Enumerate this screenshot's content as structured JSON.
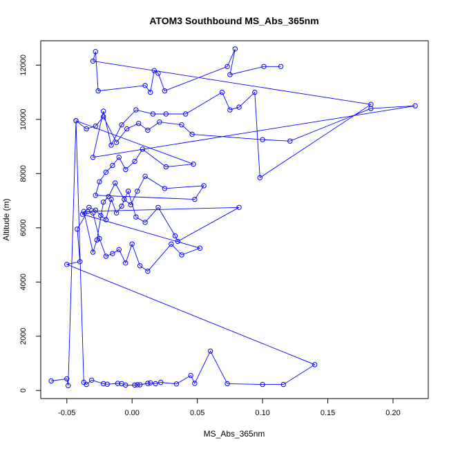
{
  "chart_data": {
    "type": "line",
    "title": "ATOM3 Southbound MS_Abs_365nm",
    "xlabel": "MS_Abs_365nm",
    "ylabel": "Altitude (m)",
    "xlim": [
      -0.07,
      0.227
    ],
    "ylim": [
      -300,
      12900
    ],
    "x_ticks": [
      -0.05,
      0.0,
      0.05,
      0.1,
      0.15,
      0.2
    ],
    "x_tick_labels": [
      "-0.05",
      "0.00",
      "0.05",
      "0.10",
      "0.15",
      "0.20"
    ],
    "y_ticks": [
      0,
      2000,
      4000,
      6000,
      8000,
      10000,
      12000
    ],
    "y_tick_labels": [
      "0",
      "2000",
      "4000",
      "6000",
      "8000",
      "10000",
      "12000"
    ],
    "grid": false,
    "legend": "none",
    "series_color": "#0000ff",
    "marker": "open-circle",
    "x": [
      -0.062,
      -0.05,
      -0.049,
      -0.043,
      -0.037,
      -0.035,
      -0.031,
      -0.022,
      -0.019,
      -0.011,
      -0.008,
      -0.005,
      0.002,
      0.004,
      0.006,
      0.012,
      0.014,
      0.018,
      0.022,
      0.034,
      0.045,
      0.048,
      0.06,
      0.073,
      0.1,
      0.116,
      0.14,
      -0.05,
      -0.04,
      -0.042,
      -0.034,
      -0.03,
      -0.025,
      -0.02,
      -0.015,
      -0.01,
      -0.005,
      0.0,
      0.006,
      0.012,
      0.03,
      0.038,
      0.052,
      -0.038,
      -0.033,
      -0.028,
      -0.024,
      -0.02,
      -0.016,
      -0.012,
      -0.008,
      -0.003,
      0.003,
      0.01,
      0.02,
      0.033,
      0.035,
      0.082,
      -0.037,
      -0.03,
      -0.027,
      -0.022,
      -0.018,
      -0.013,
      -0.006,
      -0.001,
      0.004,
      0.01,
      0.025,
      0.055,
      0.048,
      -0.028,
      -0.025,
      -0.02,
      -0.015,
      -0.01,
      -0.005,
      0.002,
      0.008,
      0.026,
      0.047,
      -0.043,
      -0.035,
      -0.028,
      -0.022,
      -0.012,
      -0.004,
      0.005,
      0.012,
      0.021,
      0.038,
      0.046,
      0.1,
      0.121,
      0.183,
      0.217,
      -0.03,
      -0.022,
      -0.016,
      -0.008,
      0.003,
      0.016,
      0.026,
      0.041,
      0.069,
      0.075,
      0.082,
      0.094,
      0.098,
      0.183,
      -0.03,
      -0.028,
      -0.026,
      0.01,
      0.014,
      0.017,
      0.02,
      0.025,
      0.073,
      0.079,
      0.075,
      0.101,
      0.114
    ],
    "y": [
      350,
      430,
      180,
      9950,
      300,
      220,
      380,
      250,
      230,
      260,
      250,
      200,
      200,
      210,
      210,
      260,
      280,
      250,
      300,
      240,
      550,
      260,
      1450,
      250,
      220,
      220,
      950,
      4650,
      4750,
      5950,
      6600,
      6550,
      5600,
      4950,
      5050,
      5200,
      4700,
      5400,
      4600,
      4400,
      5400,
      5000,
      5250,
      6500,
      6750,
      6650,
      6450,
      6300,
      7050,
      6550,
      6800,
      7350,
      6400,
      6200,
      6750,
      5700,
      5500,
      6750,
      6600,
      5100,
      5550,
      6950,
      7150,
      7650,
      7050,
      6850,
      7350,
      7900,
      7450,
      7550,
      7050,
      7200,
      7700,
      8050,
      8300,
      8600,
      8150,
      8450,
      8900,
      8250,
      8350,
      9950,
      9650,
      9750,
      10100,
      9150,
      9650,
      9850,
      9600,
      9900,
      9800,
      9450,
      9250,
      9200,
      10400,
      10500,
      8600,
      10300,
      9050,
      9800,
      10350,
      10200,
      10200,
      10200,
      11000,
      10350,
      10450,
      11000,
      7850,
      10550,
      12150,
      12500,
      11050,
      11250,
      11000,
      11800,
      11700,
      11050,
      11950,
      12600,
      11650,
      11950,
      11950
    ]
  }
}
